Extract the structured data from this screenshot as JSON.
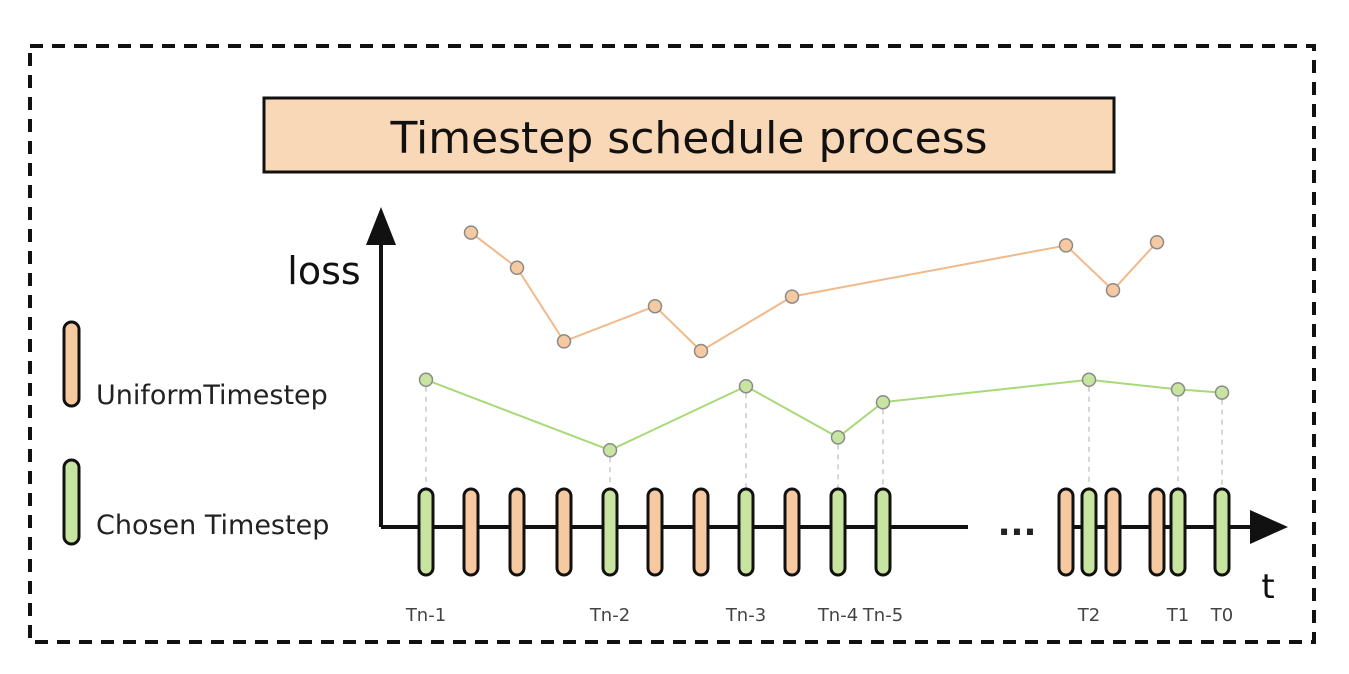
{
  "title": "Timestep schedule process",
  "y_axis_label": "loss",
  "x_axis_label": "t",
  "ellipsis": "...",
  "legend": [
    {
      "label": "UniformTimestep",
      "color": "#f7c9a0",
      "icon": "orange-pill-icon"
    },
    {
      "label": "Chosen Timestep",
      "color": "#c7e5a0",
      "icon": "green-pill-icon"
    }
  ],
  "colors": {
    "uniform_fill": "#f7c9a0",
    "uniform_line": "#f2b98a",
    "chosen_fill": "#c7e5a0",
    "chosen_line": "#a8d978",
    "title_fill": "#f9d8b8",
    "outline": "#111111"
  },
  "chart_data": {
    "type": "line",
    "x_tick_labels": [
      "Tn-1",
      "Tn-2",
      "Tn-3",
      "Tn-4",
      "Tn-5",
      "T2",
      "T1",
      "T0"
    ],
    "timestep_slots": [
      {
        "kind": "chosen",
        "tick": "Tn-1"
      },
      {
        "kind": "uniform"
      },
      {
        "kind": "uniform"
      },
      {
        "kind": "uniform"
      },
      {
        "kind": "chosen",
        "tick": "Tn-2"
      },
      {
        "kind": "uniform"
      },
      {
        "kind": "uniform"
      },
      {
        "kind": "chosen",
        "tick": "Tn-3"
      },
      {
        "kind": "uniform"
      },
      {
        "kind": "chosen",
        "tick": "Tn-4"
      },
      {
        "kind": "chosen",
        "tick": "Tn-5"
      },
      {
        "kind": "gap"
      },
      {
        "kind": "uniform"
      },
      {
        "kind": "chosen",
        "tick": "T2"
      },
      {
        "kind": "uniform"
      },
      {
        "kind": "uniform"
      },
      {
        "kind": "chosen",
        "tick": "T1"
      },
      {
        "kind": "chosen",
        "tick": "T0"
      }
    ],
    "series": [
      {
        "kind": "uniform",
        "segments": [
          [
            {
              "slot": 1,
              "loss": 0.92
            },
            {
              "slot": 2,
              "loss": 0.81
            },
            {
              "slot": 3,
              "loss": 0.58
            },
            {
              "slot": 5,
              "loss": 0.69
            },
            {
              "slot": 6,
              "loss": 0.55
            },
            {
              "slot": 8,
              "loss": 0.72
            },
            {
              "slot": 12,
              "loss": 0.88
            },
            {
              "slot": 14,
              "loss": 0.74
            },
            {
              "slot": 15,
              "loss": 0.89
            }
          ]
        ]
      },
      {
        "kind": "chosen",
        "segments": [
          [
            {
              "slot": 0,
              "loss": 0.46
            },
            {
              "slot": 4,
              "loss": 0.24
            },
            {
              "slot": 7,
              "loss": 0.44
            },
            {
              "slot": 9,
              "loss": 0.28
            },
            {
              "slot": 10,
              "loss": 0.39
            },
            {
              "slot": 13,
              "loss": 0.46
            },
            {
              "slot": 16,
              "loss": 0.43
            },
            {
              "slot": 17,
              "loss": 0.42
            }
          ]
        ]
      }
    ]
  }
}
